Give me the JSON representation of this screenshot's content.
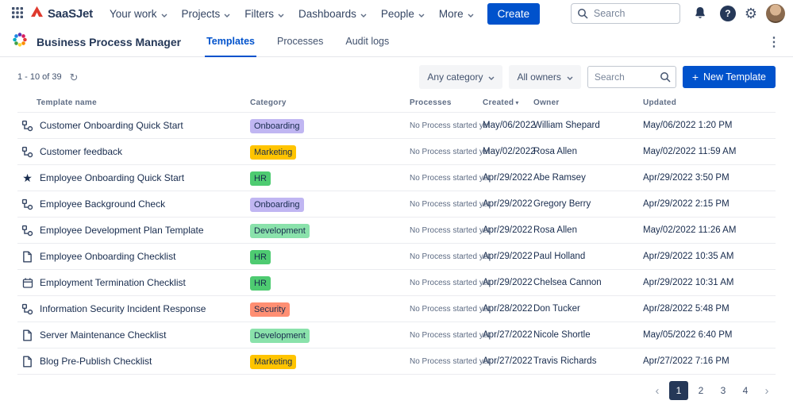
{
  "topnav": {
    "logo_text": "SaaSJet",
    "items": [
      "Your work",
      "Projects",
      "Filters",
      "Dashboards",
      "People",
      "More"
    ],
    "create_label": "Create",
    "search_placeholder": "Search"
  },
  "app_header": {
    "title": "Business Process Manager",
    "tabs": [
      {
        "label": "Templates",
        "active": true
      },
      {
        "label": "Processes",
        "active": false
      },
      {
        "label": "Audit logs",
        "active": false
      }
    ]
  },
  "toolbar": {
    "count_text": "1 - 10 of 39",
    "category_filter_label": "Any category",
    "owner_filter_label": "All owners",
    "search_placeholder": "Search",
    "new_template_label": "New Template",
    "plus_glyph": "+"
  },
  "colors": {
    "accent_blue": "#0052CC",
    "active_page_bg": "#253858",
    "badge_onboarding": "#c0b6f2",
    "badge_marketing": "#ffc400",
    "badge_hr": "#4ecb71",
    "badge_development": "#8ae2ab",
    "badge_security": "#ff8f73"
  },
  "table": {
    "headers": [
      "Template name",
      "Category",
      "Processes",
      "Created",
      "Owner",
      "Updated"
    ],
    "sort_indicator": "▾",
    "rows": [
      {
        "icon": "workflow",
        "name": "Customer Onboarding Quick Start",
        "category": "Onboarding",
        "category_color": "#c0b6f2",
        "processes": "No Process started yet",
        "created": "May/06/2022",
        "owner": "William Shepard",
        "updated": "May/06/2022 1:20 PM"
      },
      {
        "icon": "workflow",
        "name": "Customer feedback",
        "category": "Marketing",
        "category_color": "#ffc400",
        "processes": "No Process started yet",
        "created": "May/02/2022",
        "owner": "Rosa Allen",
        "updated": "May/02/2022 11:59 AM"
      },
      {
        "icon": "star",
        "name": "Employee Onboarding Quick Start",
        "category": "HR",
        "category_color": "#4ecb71",
        "processes": "No Process started yet",
        "created": "Apr/29/2022",
        "owner": "Abe Ramsey",
        "updated": "Apr/29/2022 3:50 PM"
      },
      {
        "icon": "workflow",
        "name": "Employee Background Check",
        "category": "Onboarding",
        "category_color": "#c0b6f2",
        "processes": "No Process started yet",
        "created": "Apr/29/2022",
        "owner": "Gregory Berry",
        "updated": "Apr/29/2022 2:15 PM"
      },
      {
        "icon": "workflow",
        "name": "Employee Development Plan Template",
        "category": "Development",
        "category_color": "#8ae2ab",
        "processes": "No Process started yet",
        "created": "Apr/29/2022",
        "owner": "Rosa Allen",
        "updated": "May/02/2022 11:26 AM"
      },
      {
        "icon": "page",
        "name": "Employee Onboarding Checklist",
        "category": "HR",
        "category_color": "#4ecb71",
        "processes": "No Process started yet",
        "created": "Apr/29/2022",
        "owner": "Paul Holland",
        "updated": "Apr/29/2022 10:35 AM"
      },
      {
        "icon": "calendar",
        "name": "Employment Termination Checklist",
        "category": "HR",
        "category_color": "#4ecb71",
        "processes": "No Process started yet",
        "created": "Apr/29/2022",
        "owner": "Chelsea Cannon",
        "updated": "Apr/29/2022 10:31 AM"
      },
      {
        "icon": "workflow",
        "name": "Information Security Incident Response",
        "category": "Security",
        "category_color": "#ff8f73",
        "processes": "No Process started yet",
        "created": "Apr/28/2022",
        "owner": "Don Tucker",
        "updated": "Apr/28/2022 5:48 PM"
      },
      {
        "icon": "page",
        "name": "Server Maintenance Checklist",
        "category": "Development",
        "category_color": "#8ae2ab",
        "processes": "No Process started yet",
        "created": "Apr/27/2022",
        "owner": "Nicole Shortle",
        "updated": "May/05/2022 6:40 PM"
      },
      {
        "icon": "page",
        "name": "Blog Pre-Publish Checklist",
        "category": "Marketing",
        "category_color": "#ffc400",
        "processes": "No Process started yet",
        "created": "Apr/27/2022",
        "owner": "Travis Richards",
        "updated": "Apr/27/2022 7:16 PM"
      }
    ]
  },
  "pagination": {
    "prev_glyph": "‹",
    "pages": [
      "1",
      "2",
      "3",
      "4"
    ],
    "active_page": "1",
    "next_glyph": "›"
  }
}
